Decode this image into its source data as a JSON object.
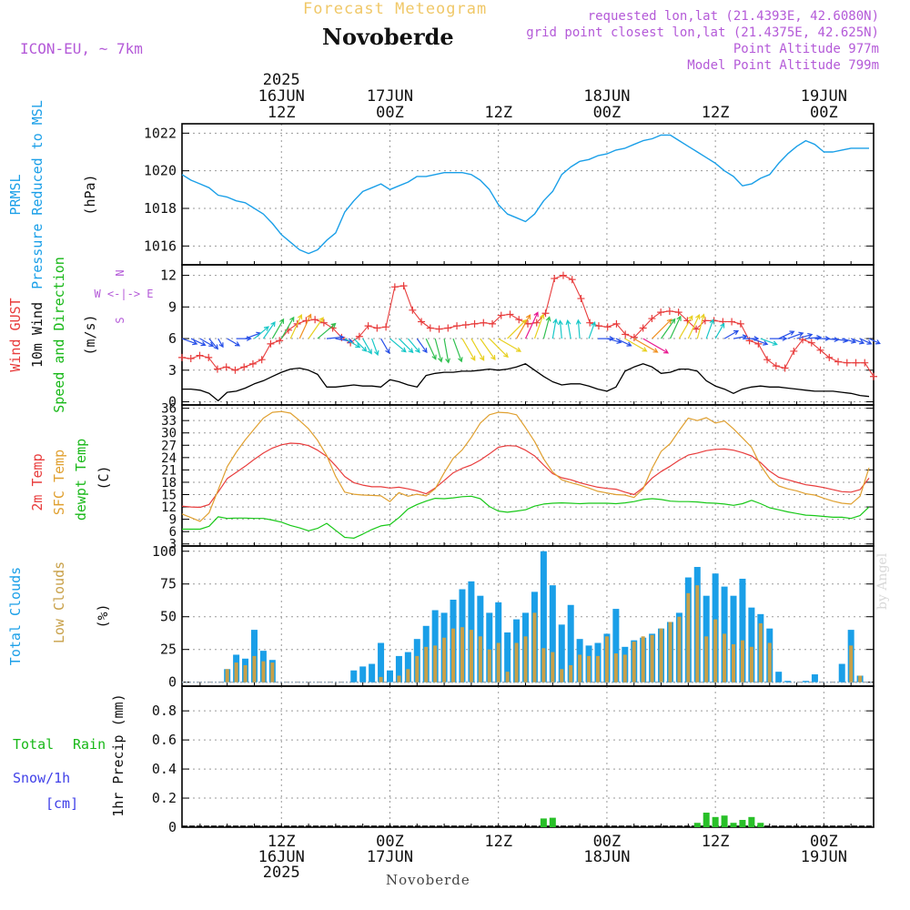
{
  "header": {
    "forecast_title": "Forecast Meteogram",
    "station": "Novoberde",
    "model": "ICON-EU, ~ 7km",
    "requested": "requested lon,lat (21.4393E, 42.6080N)",
    "grid_point": "grid point closest lon,lat (21.4375E, 42.625N)",
    "point_altitude": "Point Altitude 977m",
    "model_altitude": "Model Point Altitude 799m",
    "footer_station": "Novoberde",
    "credit": "by Angel"
  },
  "time_axis": {
    "start_label_hour": 3,
    "ticks": [
      {
        "hour": 12,
        "label": "12Z",
        "date": "16JUN",
        "year": "2025"
      },
      {
        "hour": 24,
        "label": "00Z",
        "date": "17JUN",
        "year": ""
      },
      {
        "hour": 36,
        "label": "12Z",
        "date": "",
        "year": ""
      },
      {
        "hour": 48,
        "label": "00Z",
        "date": "18JUN",
        "year": ""
      },
      {
        "hour": 60,
        "label": "12Z",
        "date": "",
        "year": ""
      },
      {
        "hour": 72,
        "label": "00Z",
        "date": "19JUN",
        "year": ""
      }
    ],
    "range_hours": [
      1,
      77.5
    ]
  },
  "colors": {
    "pressure": "#1a9fe8",
    "gust": "#e83c3c",
    "wind": "#000000",
    "temp": "#e83c3c",
    "sfc_temp": "#e0a030",
    "dewpt": "#18c818",
    "total_clouds": "#1a9fe8",
    "low_clouds": "#c8a048",
    "rain": "#28c028",
    "snow": "#4040e8",
    "purple": "#b45ad8",
    "grid": "#9a9a9a"
  },
  "panels": {
    "pressure": {
      "labels": [
        "PRMSL",
        "Pressure Reduced to MSL",
        "(hPa)"
      ]
    },
    "wind": {
      "labels": [
        "Wind GUST",
        "10m Wind",
        "Speed and Direction",
        "(m/s)"
      ],
      "compass": [
        "N",
        "W <-|-> E",
        "S"
      ]
    },
    "temp": {
      "labels": [
        "2m Temp",
        "SFC Temp",
        "dewpt Temp",
        "(C)"
      ]
    },
    "clouds": {
      "labels": [
        "Total Clouds",
        "Low Clouds",
        "(%)"
      ]
    },
    "precip": {
      "labels": [
        "Total",
        "Rain",
        "Snow/1h",
        "[cm]",
        "1hr Precip (mm)"
      ]
    }
  },
  "chart_data": [
    {
      "type": "line",
      "ylabel": "(hPa)",
      "ylim": [
        1015,
        1022.5
      ],
      "yticks": [
        1016,
        1018,
        1020,
        1022
      ],
      "x": [
        1,
        2,
        3,
        4,
        5,
        6,
        7,
        8,
        9,
        10,
        11,
        12,
        13,
        14,
        15,
        16,
        17,
        18,
        19,
        20,
        21,
        22,
        23,
        24,
        25,
        26,
        27,
        28,
        29,
        30,
        31,
        32,
        33,
        34,
        35,
        36,
        37,
        38,
        39,
        40,
        41,
        42,
        43,
        44,
        45,
        46,
        47,
        48,
        49,
        50,
        51,
        52,
        53,
        54,
        55,
        56,
        57,
        58,
        59,
        60,
        61,
        62,
        63,
        64,
        65,
        66,
        67,
        68,
        69,
        70,
        71,
        72,
        73,
        74,
        75,
        76,
        77
      ],
      "series": [
        {
          "name": "PRMSL",
          "values": [
            1019.8,
            1019.5,
            1019.3,
            1019.1,
            1018.7,
            1018.6,
            1018.4,
            1018.3,
            1018.0,
            1017.7,
            1017.2,
            1016.6,
            1016.2,
            1015.8,
            1015.6,
            1015.8,
            1016.3,
            1016.7,
            1017.8,
            1018.4,
            1018.9,
            1019.1,
            1019.3,
            1019.0,
            1019.2,
            1019.4,
            1019.7,
            1019.7,
            1019.8,
            1019.9,
            1019.9,
            1019.9,
            1019.8,
            1019.5,
            1019.0,
            1018.2,
            1017.7,
            1017.5,
            1017.3,
            1017.7,
            1018.4,
            1018.9,
            1019.8,
            1020.2,
            1020.5,
            1020.6,
            1020.8,
            1020.9,
            1021.1,
            1021.2,
            1021.4,
            1021.6,
            1021.7,
            1021.9,
            1021.9,
            1021.6,
            1021.3,
            1021.0,
            1020.7,
            1020.4,
            1020.0,
            1019.7,
            1019.2,
            1019.3,
            1019.6,
            1019.8,
            1020.4,
            1020.9,
            1021.3,
            1021.6,
            1021.4,
            1021.0,
            1021.0,
            1021.1,
            1021.2,
            1021.2,
            1021.2
          ]
        }
      ]
    },
    {
      "type": "line",
      "ylabel": "(m/s)",
      "ylim": [
        -0.3,
        13
      ],
      "yticks": [
        0,
        3,
        6,
        9,
        12
      ],
      "x": [
        1,
        2,
        3,
        4,
        5,
        6,
        7,
        8,
        9,
        10,
        11,
        12,
        13,
        14,
        15,
        16,
        17,
        18,
        19,
        20,
        21,
        22,
        23,
        24,
        25,
        26,
        27,
        28,
        29,
        30,
        31,
        32,
        33,
        34,
        35,
        36,
        37,
        38,
        39,
        40,
        41,
        42,
        43,
        44,
        45,
        46,
        47,
        48,
        49,
        50,
        51,
        52,
        53,
        54,
        55,
        56,
        57,
        58,
        59,
        60,
        61,
        62,
        63,
        64,
        65,
        66,
        67,
        68,
        69,
        70,
        71,
        72,
        73,
        74,
        75,
        76,
        77
      ],
      "series": [
        {
          "name": "Wind GUST",
          "values": [
            4.2,
            4.1,
            4.4,
            4.2,
            3.1,
            3.3,
            3.0,
            3.3,
            3.6,
            4.0,
            5.5,
            5.8,
            6.8,
            7.4,
            7.7,
            7.8,
            7.5,
            7.0,
            6.1,
            5.6,
            6.2,
            7.2,
            7.0,
            7.1,
            10.9,
            11.0,
            8.7,
            7.6,
            7.0,
            6.9,
            7.0,
            7.2,
            7.3,
            7.4,
            7.5,
            7.4,
            8.2,
            8.3,
            7.8,
            7.4,
            7.5,
            8.4,
            11.7,
            12.0,
            11.6,
            9.8,
            7.5,
            7.2,
            7.1,
            7.4,
            6.4,
            6.1,
            7.0,
            7.9,
            8.5,
            8.6,
            8.5,
            7.7,
            6.9,
            7.7,
            7.7,
            7.6,
            7.6,
            7.4,
            5.8,
            5.5,
            4.0,
            3.4,
            3.2,
            4.8,
            5.9,
            5.6,
            4.9,
            4.2,
            3.8,
            3.7,
            3.7
          ],
          "extra": [
            3.7,
            2.4
          ]
        },
        {
          "name": "10m Wind",
          "values": [
            1.2,
            1.2,
            1.1,
            0.8,
            0.1,
            0.9,
            1.0,
            1.3,
            1.7,
            2.0,
            2.4,
            2.8,
            3.1,
            3.2,
            3.0,
            2.6,
            1.4,
            1.4,
            1.5,
            1.6,
            1.5,
            1.5,
            1.4,
            2.1,
            1.9,
            1.6,
            1.4,
            2.5,
            2.7,
            2.8,
            2.8,
            2.9,
            2.9,
            3.0,
            3.1,
            3.0,
            3.1,
            3.3,
            3.6,
            3.0,
            2.4,
            1.9,
            1.6,
            1.7,
            1.7,
            1.5,
            1.2,
            1.0,
            1.4,
            2.9,
            3.3,
            3.6,
            3.3,
            2.7,
            2.8,
            3.1,
            3.1,
            2.9,
            2.0,
            1.5,
            1.2,
            0.8,
            1.2,
            1.4,
            1.5,
            1.4,
            1.4,
            1.3,
            1.2,
            1.1,
            1.0,
            1.0,
            1.0,
            0.9,
            0.8,
            0.6,
            0.5
          ]
        },
        {
          "name": "Wind direction",
          "values": [
            290,
            295,
            300,
            320,
            330,
            300,
            270,
            250,
            230,
            215,
            210,
            210,
            205,
            205,
            215,
            230,
            265,
            280,
            300,
            315,
            330,
            340,
            330,
            310,
            315,
            320,
            325,
            335,
            345,
            350,
            340,
            330,
            330,
            325,
            315,
            300,
            225,
            210,
            205,
            200,
            195,
            190,
            175,
            170,
            175,
            200,
            270,
            285,
            295,
            300,
            300,
            300,
            225,
            215,
            205,
            210,
            205,
            195,
            200,
            210,
            240,
            260,
            270,
            290,
            290,
            270,
            245,
            250,
            255,
            265,
            270,
            275,
            280,
            285,
            290,
            295,
            295
          ]
        }
      ]
    },
    {
      "type": "line",
      "ylabel": "(C)",
      "ylim": [
        2.5,
        36.8
      ],
      "yticks": [
        3,
        6,
        9,
        12,
        15,
        18,
        21,
        24,
        27,
        30,
        33,
        36
      ],
      "x": [
        1,
        2,
        3,
        4,
        5,
        6,
        7,
        8,
        9,
        10,
        11,
        12,
        13,
        14,
        15,
        16,
        17,
        18,
        19,
        20,
        21,
        22,
        23,
        24,
        25,
        26,
        27,
        28,
        29,
        30,
        31,
        32,
        33,
        34,
        35,
        36,
        37,
        38,
        39,
        40,
        41,
        42,
        43,
        44,
        45,
        46,
        47,
        48,
        49,
        50,
        51,
        52,
        53,
        54,
        55,
        56,
        57,
        58,
        59,
        60,
        61,
        62,
        63,
        64,
        65,
        66,
        67,
        68,
        69,
        70,
        71,
        72,
        73,
        74,
        75,
        76,
        77
      ],
      "series": [
        {
          "name": "2m Temp",
          "values": [
            12.2,
            12.0,
            11.9,
            12.6,
            15.6,
            18.9,
            20.4,
            21.9,
            23.6,
            25.1,
            26.3,
            27.1,
            27.5,
            27.4,
            26.9,
            25.8,
            24.3,
            22.0,
            19.4,
            17.9,
            17.3,
            16.9,
            16.9,
            16.6,
            16.8,
            16.4,
            15.9,
            15.2,
            16.6,
            18.4,
            20.3,
            21.4,
            22.2,
            23.4,
            24.9,
            26.5,
            26.9,
            26.8,
            25.8,
            24.4,
            22.2,
            20.1,
            19.1,
            18.6,
            17.9,
            17.3,
            16.8,
            16.5,
            16.3,
            15.6,
            15.0,
            16.7,
            19.0,
            20.6,
            21.9,
            23.4,
            24.6,
            25.1,
            25.7,
            26.0,
            26.1,
            25.8,
            25.2,
            24.4,
            22.8,
            20.7,
            19.2,
            18.6,
            18.0,
            17.4,
            17.1,
            16.7,
            16.2,
            15.7,
            15.6,
            16.2,
            19.0
          ]
        },
        {
          "name": "SFC Temp",
          "values": [
            10.3,
            9.4,
            8.5,
            10.6,
            16.1,
            21.8,
            25.3,
            28.3,
            31.0,
            33.6,
            35.0,
            35.2,
            34.8,
            33.0,
            31.0,
            28.2,
            24.5,
            19.4,
            15.6,
            15.1,
            14.9,
            14.8,
            14.7,
            13.3,
            15.5,
            14.6,
            15.1,
            14.7,
            16.4,
            20.3,
            23.8,
            25.9,
            28.9,
            32.4,
            34.4,
            35.0,
            34.9,
            34.4,
            31.3,
            27.9,
            23.7,
            20.5,
            18.6,
            17.9,
            17.3,
            16.6,
            15.8,
            15.4,
            15.0,
            14.9,
            14.3,
            16.4,
            21.4,
            25.5,
            27.4,
            30.6,
            33.6,
            33.0,
            33.7,
            32.4,
            32.9,
            31.0,
            28.8,
            26.5,
            22.1,
            18.9,
            17.1,
            16.4,
            15.9,
            15.2,
            14.9,
            14.1,
            13.4,
            12.9,
            12.7,
            14.6,
            21.5
          ]
        },
        {
          "name": "dewpt Temp",
          "values": [
            6.6,
            6.6,
            6.6,
            7.3,
            9.6,
            9.2,
            9.3,
            9.3,
            9.2,
            9.2,
            8.8,
            8.3,
            7.5,
            6.9,
            6.2,
            6.8,
            8.0,
            6.3,
            4.6,
            4.4,
            5.4,
            6.5,
            7.4,
            7.7,
            9.4,
            11.5,
            12.6,
            13.4,
            14.1,
            14.0,
            14.2,
            14.5,
            14.6,
            14.0,
            12.1,
            11.0,
            10.7,
            11.0,
            11.3,
            12.2,
            12.7,
            12.9,
            13.0,
            12.9,
            12.8,
            12.9,
            12.9,
            12.9,
            12.8,
            13.0,
            13.3,
            13.8,
            14.0,
            13.8,
            13.4,
            13.3,
            13.3,
            13.2,
            13.0,
            12.9,
            12.7,
            12.4,
            12.8,
            13.6,
            12.8,
            11.8,
            11.3,
            10.8,
            10.4,
            10.0,
            9.9,
            9.7,
            9.5,
            9.5,
            9.2,
            9.9,
            12.0
          ]
        }
      ]
    },
    {
      "type": "bar",
      "ylabel": "(%)",
      "ylim": [
        -3,
        104
      ],
      "yticks": [
        0,
        25,
        50,
        75,
        100
      ],
      "x": [
        6,
        7,
        8,
        9,
        10,
        11,
        12,
        13,
        20,
        21,
        22,
        23,
        24,
        25,
        26,
        27,
        28,
        29,
        30,
        31,
        32,
        33,
        34,
        35,
        36,
        37,
        38,
        39,
        40,
        41,
        42,
        43,
        44,
        45,
        46,
        47,
        48,
        49,
        50,
        51,
        52,
        53,
        54,
        55,
        56,
        57,
        58,
        59,
        60,
        61,
        62,
        63,
        64,
        65,
        66,
        67,
        68,
        74,
        75,
        76
      ],
      "series": [
        {
          "name": "Total Clouds",
          "values": [
            10,
            21,
            18,
            40,
            24,
            17,
            0,
            0,
            9,
            12,
            14,
            30,
            9,
            20,
            23,
            33,
            43,
            55,
            53,
            63,
            71,
            77,
            66,
            53,
            61,
            38,
            48,
            53,
            69,
            100,
            74,
            44,
            59,
            33,
            28,
            30,
            37,
            56,
            27,
            32,
            34,
            37,
            41,
            46,
            53,
            80,
            88,
            66,
            83,
            73,
            66,
            79,
            57,
            52,
            41,
            8,
            1,
            14,
            40,
            5
          ],
          "extra_x": [
            70,
            71
          ],
          "extra_values": [
            1,
            6
          ]
        },
        {
          "name": "Low Clouds",
          "values": [
            10,
            15,
            13,
            20,
            16,
            15,
            0,
            0,
            0,
            0,
            0,
            4,
            0,
            5,
            10,
            20,
            27,
            28,
            34,
            41,
            42,
            40,
            35,
            25,
            30,
            8,
            30,
            35,
            53,
            26,
            23,
            10,
            13,
            21,
            20,
            20,
            35,
            22,
            21,
            31,
            35,
            36,
            41,
            46,
            50,
            68,
            74,
            35,
            48,
            37,
            29,
            32,
            27,
            45,
            30,
            0,
            0,
            0,
            28,
            5
          ]
        }
      ]
    },
    {
      "type": "bar",
      "ylabel": "1hr Precip (mm)",
      "ylim": [
        0,
        0.97
      ],
      "yticks": [
        0,
        0.2,
        0.4,
        0.6,
        0.8
      ],
      "x": [
        41,
        42,
        58,
        59,
        60,
        61,
        62,
        63,
        64,
        65
      ],
      "series": [
        {
          "name": "Total Rain",
          "values": [
            0.06,
            0.065,
            0.03,
            0.1,
            0.07,
            0.08,
            0.03,
            0.05,
            0.07,
            0.03
          ]
        }
      ]
    }
  ]
}
